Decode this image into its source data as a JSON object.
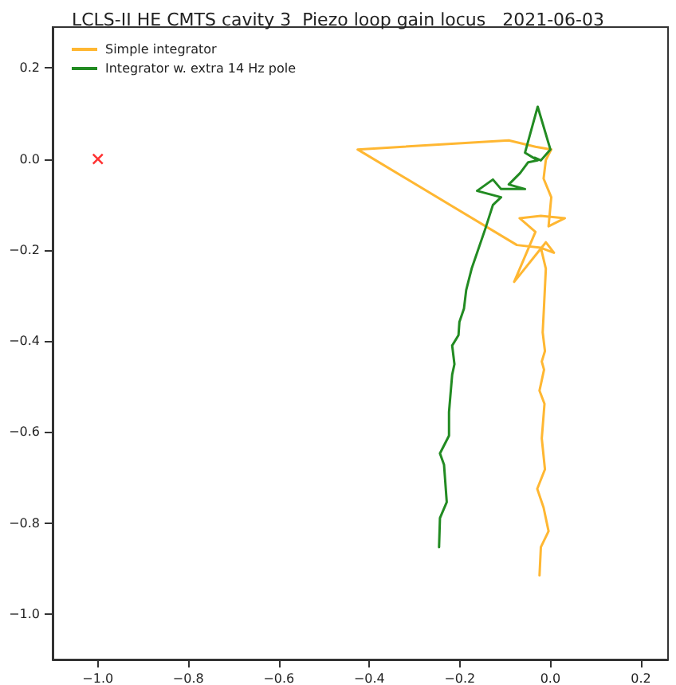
{
  "chart_data": {
    "type": "line",
    "title": "LCLS-II HE CMTS cavity 3  Piezo loop gain locus   2021-06-03",
    "xlim": [
      -1.1,
      0.26
    ],
    "ylim": [
      -1.1,
      0.29
    ],
    "xticks": [
      {
        "value": -1.0,
        "label": "−1.0"
      },
      {
        "value": -0.8,
        "label": "−0.8"
      },
      {
        "value": -0.6,
        "label": "−0.6"
      },
      {
        "value": -0.4,
        "label": "−0.4"
      },
      {
        "value": -0.2,
        "label": "−0.2"
      },
      {
        "value": 0.0,
        "label": "0.0"
      },
      {
        "value": 0.2,
        "label": "0.2"
      }
    ],
    "yticks": [
      {
        "value": -1.0,
        "label": "−1.0"
      },
      {
        "value": -0.8,
        "label": "−0.8"
      },
      {
        "value": -0.6,
        "label": "−0.6"
      },
      {
        "value": -0.4,
        "label": "−0.4"
      },
      {
        "value": -0.2,
        "label": "−0.2"
      },
      {
        "value": 0.0,
        "label": "0.0"
      },
      {
        "value": 0.2,
        "label": "0.2"
      }
    ],
    "grid": false,
    "legend": "top left",
    "series": [
      {
        "name": "Simple integrator",
        "color": "#ffb732",
        "marker": "none",
        "x": [
          -0.024,
          -0.021,
          -0.004,
          -0.015,
          -0.029,
          -0.012,
          -0.019,
          -0.013,
          -0.024,
          -0.014,
          -0.019,
          -0.012,
          -0.017,
          -0.014,
          -0.01,
          -0.021,
          0.008,
          -0.01,
          -0.08,
          -0.033,
          -0.068,
          -0.021,
          0.032,
          -0.004,
          0.002,
          -0.015,
          -0.01,
          0.002,
          -0.033,
          -0.092,
          -0.426,
          -0.074,
          -0.021
        ],
        "values": [
          -0.915,
          -0.853,
          -0.818,
          -0.766,
          -0.725,
          -0.682,
          -0.614,
          -0.538,
          -0.509,
          -0.463,
          -0.445,
          -0.422,
          -0.381,
          -0.323,
          -0.241,
          -0.195,
          -0.206,
          -0.183,
          -0.27,
          -0.16,
          -0.13,
          -0.125,
          -0.13,
          -0.148,
          -0.084,
          -0.043,
          -0.002,
          0.021,
          0.027,
          0.041,
          0.021,
          -0.189,
          -0.195
        ]
      },
      {
        "name": "Integrator w. extra 14 Hz pole",
        "color": "#228b22",
        "marker": "none",
        "x": [
          -0.246,
          -0.244,
          -0.229,
          -0.235,
          -0.244,
          -0.224,
          -0.224,
          -0.217,
          -0.212,
          -0.217,
          -0.203,
          -0.201,
          -0.191,
          -0.186,
          -0.174,
          -0.144,
          -0.127,
          -0.109,
          -0.162,
          -0.127,
          -0.109,
          -0.056,
          -0.092,
          -0.067,
          -0.049,
          -0.028,
          -0.056,
          -0.028,
          0.0,
          -0.021,
          -0.035
        ],
        "values": [
          -0.853,
          -0.789,
          -0.754,
          -0.672,
          -0.647,
          -0.608,
          -0.556,
          -0.474,
          -0.451,
          -0.41,
          -0.387,
          -0.358,
          -0.329,
          -0.288,
          -0.241,
          -0.154,
          -0.101,
          -0.084,
          -0.07,
          -0.045,
          -0.066,
          -0.066,
          -0.056,
          -0.031,
          -0.007,
          -0.003,
          0.014,
          0.115,
          0.021,
          -0.003,
          0.003
        ]
      },
      {
        "type": "scatter",
        "color": "#ff0000",
        "marker": "cross",
        "x": [
          -1.0
        ],
        "values": [
          0.0
        ]
      }
    ]
  }
}
